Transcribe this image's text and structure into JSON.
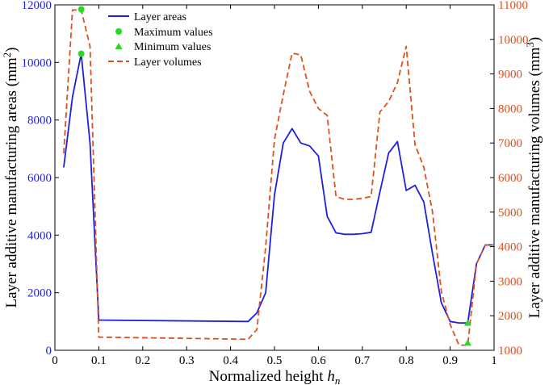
{
  "chart_data": {
    "type": "line",
    "xlabel": "Normalized height",
    "xlabel_var": "h",
    "xlabel_sub": "n",
    "ylabel_left": "Layer additive manufacturing areas",
    "ylabel_left_unit_open": "(mm",
    "ylabel_left_unit_sup": "2",
    "ylabel_left_unit_close": ")",
    "ylabel_right": "Layer additive manufacturing volumes",
    "ylabel_right_unit_open": "(mm",
    "ylabel_right_unit_sup": "3",
    "ylabel_right_unit_close": ")",
    "xlim": [
      0,
      1
    ],
    "ylim_left": [
      0,
      12000
    ],
    "ylim_right": [
      1000,
      11000
    ],
    "x_ticks": [
      "0",
      "0.1",
      "0.2",
      "0.3",
      "0.4",
      "0.5",
      "0.6",
      "0.7",
      "0.8",
      "0.9",
      "1"
    ],
    "y_left_ticks": [
      "0",
      "2000",
      "4000",
      "6000",
      "8000",
      "10000",
      "12000"
    ],
    "y_right_ticks": [
      "1000",
      "2000",
      "3000",
      "4000",
      "5000",
      "6000",
      "7000",
      "8000",
      "9000",
      "10000",
      "11000"
    ],
    "legend_position": "top-left",
    "legend": [
      "Layer areas",
      "Maximum values",
      "Minimum values",
      "Layer volumes"
    ],
    "colors": {
      "areas": "#1f1fe0",
      "volumes": "#e0501c",
      "markers": "#22dd22"
    },
    "series": [
      {
        "name": "Layer areas",
        "axis": "left",
        "style": "solid",
        "x": [
          0.02,
          0.04,
          0.06,
          0.08,
          0.1,
          0.44,
          0.46,
          0.48,
          0.5,
          0.52,
          0.54,
          0.56,
          0.58,
          0.6,
          0.62,
          0.64,
          0.66,
          0.68,
          0.7,
          0.72,
          0.74,
          0.76,
          0.78,
          0.8,
          0.82,
          0.84,
          0.86,
          0.88,
          0.9,
          0.92,
          0.94,
          0.96,
          0.98,
          1.0
        ],
        "y": [
          6350,
          8800,
          10300,
          7200,
          1050,
          1000,
          1300,
          2000,
          5400,
          7200,
          7700,
          7200,
          7100,
          6750,
          4650,
          4080,
          4030,
          4030,
          4050,
          4100,
          5500,
          6850,
          7250,
          5550,
          5730,
          5150,
          3350,
          1650,
          1000,
          950,
          950,
          3000,
          3660,
          3660
        ]
      },
      {
        "name": "Layer volumes",
        "axis": "right",
        "style": "dashed",
        "x": [
          0.02,
          0.04,
          0.06,
          0.08,
          0.1,
          0.44,
          0.46,
          0.48,
          0.5,
          0.52,
          0.54,
          0.56,
          0.58,
          0.6,
          0.62,
          0.64,
          0.66,
          0.68,
          0.7,
          0.72,
          0.74,
          0.76,
          0.78,
          0.8,
          0.82,
          0.84,
          0.86,
          0.88,
          0.9,
          0.92,
          0.94,
          0.96,
          0.98,
          1.0
        ],
        "y": [
          6700,
          10850,
          10850,
          9800,
          1380,
          1320,
          1600,
          4000,
          7100,
          8400,
          9600,
          9550,
          8500,
          8000,
          7800,
          5450,
          5370,
          5370,
          5400,
          5450,
          7900,
          8200,
          8750,
          9800,
          6950,
          6300,
          5000,
          2700,
          1750,
          1150,
          1150,
          3500,
          4050,
          4050
        ]
      }
    ],
    "maximum_points": [
      {
        "axis": "left",
        "x": 0.06,
        "y": 10300
      },
      {
        "axis": "right",
        "x": 0.06,
        "y": 10870
      }
    ],
    "minimum_points": [
      {
        "axis": "left",
        "x": 0.94,
        "y": 950
      },
      {
        "axis": "right",
        "x": 0.94,
        "y": 1220
      }
    ]
  }
}
